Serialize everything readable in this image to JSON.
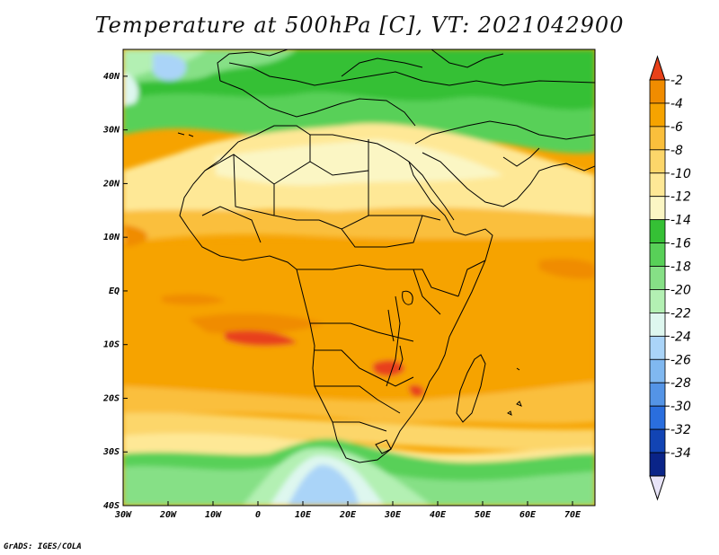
{
  "title": "Temperature at 500hPa [C], VT: 2021042900",
  "footer": "GrADS: IGES/COLA",
  "map": {
    "projection": "latlon",
    "lon_range": [
      -30,
      75
    ],
    "lat_range": [
      -40,
      45
    ],
    "x_ticks": [
      {
        "lon": -30,
        "label": "30W"
      },
      {
        "lon": -20,
        "label": "20W"
      },
      {
        "lon": -10,
        "label": "10W"
      },
      {
        "lon": 0,
        "label": "0"
      },
      {
        "lon": 10,
        "label": "10E"
      },
      {
        "lon": 20,
        "label": "20E"
      },
      {
        "lon": 30,
        "label": "30E"
      },
      {
        "lon": 40,
        "label": "40E"
      },
      {
        "lon": 50,
        "label": "50E"
      },
      {
        "lon": 60,
        "label": "60E"
      },
      {
        "lon": 70,
        "label": "70E"
      }
    ],
    "y_ticks": [
      {
        "lat": 40,
        "label": "40N"
      },
      {
        "lat": 30,
        "label": "30N"
      },
      {
        "lat": 20,
        "label": "20N"
      },
      {
        "lat": 10,
        "label": "10N"
      },
      {
        "lat": 0,
        "label": "EQ"
      },
      {
        "lat": -10,
        "label": "10S"
      },
      {
        "lat": -20,
        "label": "20S"
      },
      {
        "lat": -30,
        "label": "30S"
      },
      {
        "lat": -40,
        "label": "40S"
      }
    ]
  },
  "colorbar": {
    "labels": [
      "-2",
      "-4",
      "-6",
      "-8",
      "-10",
      "-12",
      "-14",
      "-16",
      "-18",
      "-20",
      "-22",
      "-24",
      "-26",
      "-28",
      "-30",
      "-32",
      "-34"
    ],
    "colors": [
      "#f08c00",
      "#f6a300",
      "#fabf3c",
      "#fcd66a",
      "#fee896",
      "#fbf6c4",
      "#35c035",
      "#58d058",
      "#86e086",
      "#b3f0b3",
      "#def7ef",
      "#aad4f8",
      "#80b8f0",
      "#5494e6",
      "#2a6ede",
      "#1244b4",
      "#0a2488"
    ],
    "top_color": "#e8411a",
    "bottom_color": "#e8e4f8"
  }
}
